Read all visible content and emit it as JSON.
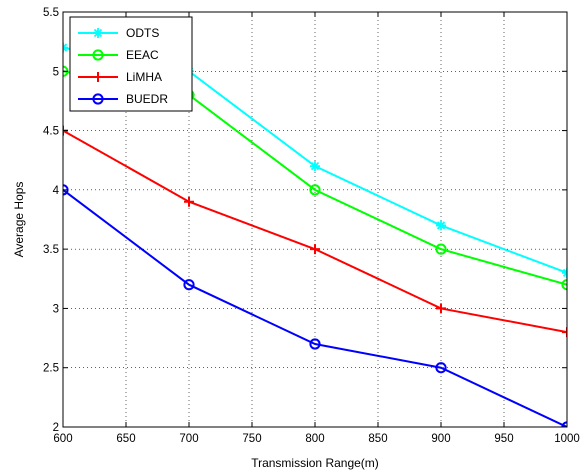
{
  "chart_data": {
    "type": "line",
    "xlabel": "Transmission Range(m)",
    "ylabel": "Average Hops",
    "xlim": [
      600,
      1000
    ],
    "ylim": [
      2,
      5.5
    ],
    "xticks": [
      600,
      650,
      700,
      750,
      800,
      850,
      900,
      950,
      1000
    ],
    "yticks": [
      2,
      2.5,
      3,
      3.5,
      4,
      4.5,
      5,
      5.5
    ],
    "xtick_labels": [
      "600",
      "650",
      "700",
      "750",
      "800",
      "850",
      "900",
      "950",
      "1000"
    ],
    "ytick_labels": [
      "2",
      "2.5",
      "3",
      "3.5",
      "4",
      "4.5",
      "5",
      "5.5"
    ],
    "grid": true,
    "legend_position": "top-left",
    "x": [
      600,
      700,
      800,
      900,
      1000
    ],
    "series": [
      {
        "name": "ODTS",
        "color": "#00ffff",
        "marker": "star",
        "values": [
          5.2,
          5.0,
          4.2,
          3.7,
          3.3
        ]
      },
      {
        "name": "EEAC",
        "color": "#00ff00",
        "marker": "circle",
        "values": [
          5.0,
          4.8,
          4.0,
          3.5,
          3.2
        ]
      },
      {
        "name": "LiMHA",
        "color": "#ff0000",
        "marker": "plus",
        "values": [
          4.5,
          3.9,
          3.5,
          3.0,
          2.8
        ]
      },
      {
        "name": "BUEDR",
        "color": "#0000ff",
        "marker": "circle",
        "values": [
          4.0,
          3.2,
          2.7,
          2.5,
          2.0
        ]
      }
    ]
  }
}
